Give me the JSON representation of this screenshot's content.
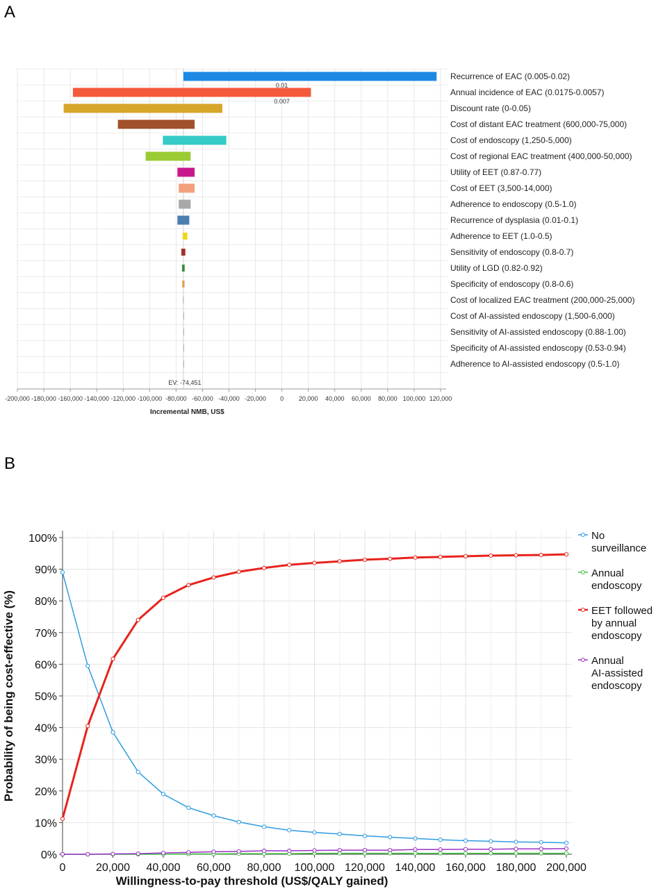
{
  "panel_a_label": "A",
  "panel_b_label": "B",
  "chart_data": [
    {
      "type": "tornado",
      "xlabel": "Incremental NMB, US$",
      "xlim": [
        -200000,
        120000
      ],
      "xticks": [
        -200000,
        -180000,
        -160000,
        -140000,
        -120000,
        -100000,
        -80000,
        -60000,
        -40000,
        -20000,
        0,
        20000,
        40000,
        60000,
        80000,
        100000,
        120000
      ],
      "xtick_labels": [
        "-200,000",
        "-180,000",
        "-160,000",
        "-140,000",
        "-120,000",
        "-100,000",
        "-80,000",
        "-60,000",
        "-40,000",
        "-20,000",
        "0",
        "20,000",
        "40,000",
        "60,000",
        "80,000",
        "100,000",
        "120,000"
      ],
      "expected_value": -74451,
      "ev_label": "EV: -74,451",
      "grid": true,
      "bars": [
        {
          "label": "Recurrence of EAC (0.005-0.02)",
          "low": -74451,
          "high": 117000,
          "color": "#1e88e5",
          "annotation": "0.01"
        },
        {
          "label": "Annual incidence of EAC (0.0175-0.0057)",
          "low": -158000,
          "high": 22000,
          "color": "#f4593a",
          "annotation": "0.007"
        },
        {
          "label": "Discount rate (0-0.05)",
          "low": -165000,
          "high": -45000,
          "color": "#d8a52b",
          "annotation": ""
        },
        {
          "label": "Cost of distant EAC treatment (600,000-75,000)",
          "low": -124000,
          "high": -66000,
          "color": "#a0502a",
          "annotation": ""
        },
        {
          "label": "Cost of endoscopy (1,250-5,000)",
          "low": -90000,
          "high": -42000,
          "color": "#36cbc7",
          "annotation": ""
        },
        {
          "label": "Cost of regional EAC treatment (400,000-50,000)",
          "low": -103000,
          "high": -69000,
          "color": "#9acb34",
          "annotation": ""
        },
        {
          "label": "Utility of EET (0.87-0.77)",
          "low": -79000,
          "high": -66000,
          "color": "#c8198c",
          "annotation": ""
        },
        {
          "label": "Cost of EET (3,500-14,000)",
          "low": -78000,
          "high": -66000,
          "color": "#f2a07e",
          "annotation": ""
        },
        {
          "label": "Adherence to endoscopy (0.5-1.0)",
          "low": -78000,
          "high": -69000,
          "color": "#a8a8a8",
          "annotation": ""
        },
        {
          "label": "Recurrence of dysplasia (0.01-0.1)",
          "low": -79000,
          "high": -70000,
          "color": "#4a7fb0",
          "annotation": ""
        },
        {
          "label": "Adherence to EET (1.0-0.5)",
          "low": -75000,
          "high": -71500,
          "color": "#f0d51c",
          "annotation": ""
        },
        {
          "label": "Sensitivity of endoscopy (0.8-0.7)",
          "low": -76000,
          "high": -73000,
          "color": "#a3302a",
          "annotation": ""
        },
        {
          "label": "Utility of LGD (0.82-0.92)",
          "low": -75500,
          "high": -73500,
          "color": "#3c8a3c",
          "annotation": ""
        },
        {
          "label": "Specificity of endoscopy (0.8-0.6)",
          "low": -75300,
          "high": -73600,
          "color": "#e0a050",
          "annotation": ""
        },
        {
          "label": "Cost of localized EAC treatment (200,000-25,000)",
          "low": -74800,
          "high": -74200,
          "color": "#b0b0b0",
          "annotation": ""
        },
        {
          "label": "Cost of AI-assisted endoscopy (1,500-6,000)",
          "low": -74451,
          "high": -74451,
          "color": "#b0b0b0",
          "annotation": ""
        },
        {
          "label": "Sensitivity of AI-assisted endoscopy (0.88-1.00)",
          "low": -74451,
          "high": -74451,
          "color": "#b0b0b0",
          "annotation": ""
        },
        {
          "label": "Specificity of AI-assisted endoscopy (0.53-0.94)",
          "low": -74451,
          "high": -74451,
          "color": "#b0b0b0",
          "annotation": ""
        },
        {
          "label": "Adherence to AI-assisted endoscopy (0.5-1.0)",
          "low": -74451,
          "high": -74451,
          "color": "#b0b0b0",
          "annotation": ""
        }
      ]
    },
    {
      "type": "line",
      "xlabel": "Willingness-to-pay threshold (US$/QALY gained)",
      "ylabel": "Probability of being cost-effective (%)",
      "xlim": [
        0,
        200000
      ],
      "ylim": [
        0,
        100
      ],
      "xticks": [
        0,
        20000,
        40000,
        60000,
        80000,
        100000,
        120000,
        140000,
        160000,
        180000,
        200000
      ],
      "xtick_labels": [
        "0",
        "20,000",
        "40,000",
        "60,000",
        "80,000",
        "100,000",
        "120,000",
        "140,000",
        "160,000",
        "180,000",
        "200,000"
      ],
      "yticks": [
        0,
        10,
        20,
        30,
        40,
        50,
        60,
        70,
        80,
        90,
        100
      ],
      "ytick_labels": [
        "0%",
        "10%",
        "20%",
        "30%",
        "40%",
        "50%",
        "60%",
        "70%",
        "80%",
        "90%",
        "100%"
      ],
      "grid": true,
      "legend_position": "right",
      "x": [
        0,
        10000,
        20000,
        30000,
        40000,
        50000,
        60000,
        70000,
        80000,
        90000,
        100000,
        110000,
        120000,
        130000,
        140000,
        150000,
        160000,
        170000,
        180000,
        190000,
        200000
      ],
      "series": [
        {
          "name": "No surveillance",
          "legend_lines": [
            "No",
            "surveillance"
          ],
          "color": "#2e9be0",
          "width": 1.5,
          "values": [
            89,
            59.5,
            38.5,
            26,
            19,
            14.7,
            12.2,
            10.2,
            8.7,
            7.6,
            6.9,
            6.4,
            5.8,
            5.4,
            5.0,
            4.6,
            4.3,
            4.1,
            3.9,
            3.8,
            3.6
          ]
        },
        {
          "name": "Annual endoscopy",
          "legend_lines": [
            "Annual",
            "endoscopy"
          ],
          "color": "#3cc43c",
          "width": 1.5,
          "values": [
            0,
            0,
            0,
            0,
            0,
            0.1,
            0.1,
            0.2,
            0.2,
            0.2,
            0.3,
            0.3,
            0.3,
            0.3,
            0.3,
            0.3,
            0.3,
            0.3,
            0.3,
            0.3,
            0.3
          ]
        },
        {
          "name": "EET followed by annual endoscopy",
          "legend_lines": [
            "EET followed",
            "by annual",
            "endoscopy"
          ],
          "color": "#e8221c",
          "width": 3,
          "values": [
            11.2,
            40.5,
            61.7,
            74,
            81,
            85,
            87.4,
            89.2,
            90.4,
            91.4,
            92.0,
            92.5,
            93.0,
            93.3,
            93.7,
            93.9,
            94.1,
            94.3,
            94.4,
            94.5,
            94.7
          ]
        },
        {
          "name": "Annual AI-assisted endoscopy",
          "legend_lines": [
            "Annual",
            "AI-assisted",
            "endoscopy"
          ],
          "color": "#9a2fc6",
          "width": 1.5,
          "values": [
            0,
            0,
            0.1,
            0.2,
            0.4,
            0.6,
            0.8,
            0.9,
            1.1,
            1.1,
            1.2,
            1.3,
            1.3,
            1.3,
            1.5,
            1.5,
            1.6,
            1.6,
            1.7,
            1.7,
            1.8
          ]
        }
      ]
    }
  ]
}
